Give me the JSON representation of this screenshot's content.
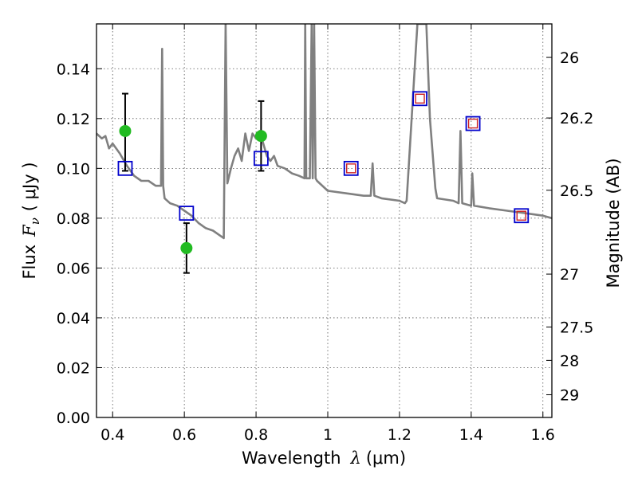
{
  "chart_data": {
    "type": "line",
    "xlabel_prefix": "Wavelength",
    "xlabel_symbol": "λ",
    "xlabel_unit": "(μm)",
    "ylabel_prefix": "Flux",
    "ylabel_symbol": "F",
    "ylabel_subscript": "ν",
    "ylabel_unit": "( μJy )",
    "y2label": "Magnitude (AB)",
    "xlim": [
      0.355,
      1.625
    ],
    "ylim": [
      0.0,
      0.158
    ],
    "grid": true,
    "x_ticks": [
      0.4,
      0.6,
      0.8,
      1.0,
      1.2,
      1.4,
      1.6
    ],
    "x_tick_labels": [
      "0.4",
      "0.6",
      "0.8",
      "1",
      "1.2",
      "1.4",
      "1.6"
    ],
    "y_ticks": [
      0.0,
      0.02,
      0.04,
      0.06,
      0.08,
      0.1,
      0.12,
      0.14
    ],
    "y_tick_labels": [
      "0.00",
      "0.02",
      "0.04",
      "0.06",
      "0.08",
      "0.10",
      "0.12",
      "0.14"
    ],
    "y2_ticks": [
      26,
      26.2,
      26.5,
      27,
      27.5,
      28,
      29
    ],
    "y2_tick_labels": [
      "26",
      "26.2",
      "26.5",
      "27",
      "27.5",
      "28",
      "29"
    ],
    "model_spectrum": {
      "color": "#808080",
      "x": [
        0.355,
        0.37,
        0.38,
        0.39,
        0.4,
        0.42,
        0.44,
        0.46,
        0.48,
        0.5,
        0.52,
        0.535,
        0.538,
        0.541,
        0.545,
        0.56,
        0.58,
        0.6,
        0.62,
        0.64,
        0.66,
        0.68,
        0.7,
        0.71,
        0.715,
        0.72,
        0.73,
        0.74,
        0.75,
        0.76,
        0.77,
        0.78,
        0.79,
        0.8,
        0.81,
        0.82,
        0.83,
        0.84,
        0.85,
        0.86,
        0.88,
        0.9,
        0.92,
        0.935,
        0.937,
        0.94,
        0.95,
        0.955,
        0.958,
        0.962,
        0.966,
        0.97,
        1.0,
        1.05,
        1.1,
        1.12,
        1.125,
        1.13,
        1.15,
        1.2,
        1.215,
        1.22,
        1.25,
        1.26,
        1.275,
        1.285,
        1.3,
        1.305,
        1.35,
        1.365,
        1.37,
        1.375,
        1.4,
        1.403,
        1.408,
        1.45,
        1.5,
        1.55,
        1.6,
        1.625
      ],
      "y": [
        0.114,
        0.112,
        0.113,
        0.108,
        0.11,
        0.106,
        0.101,
        0.097,
        0.095,
        0.095,
        0.093,
        0.093,
        0.148,
        0.093,
        0.088,
        0.086,
        0.085,
        0.083,
        0.081,
        0.078,
        0.076,
        0.075,
        0.073,
        0.072,
        0.158,
        0.094,
        0.1,
        0.105,
        0.108,
        0.103,
        0.114,
        0.107,
        0.114,
        0.112,
        0.115,
        0.11,
        0.105,
        0.103,
        0.105,
        0.101,
        0.1,
        0.098,
        0.097,
        0.096,
        0.158,
        0.096,
        0.096,
        0.158,
        0.096,
        0.158,
        0.096,
        0.095,
        0.091,
        0.09,
        0.089,
        0.089,
        0.102,
        0.089,
        0.088,
        0.087,
        0.086,
        0.087,
        0.158,
        0.158,
        0.158,
        0.12,
        0.092,
        0.088,
        0.087,
        0.086,
        0.115,
        0.086,
        0.085,
        0.098,
        0.085,
        0.084,
        0.083,
        0.082,
        0.081,
        0.08
      ]
    },
    "measured_points": {
      "color": "#22bb22",
      "points": [
        {
          "x": 0.435,
          "y": 0.115,
          "err_low": 0.099,
          "err_high": 0.13
        },
        {
          "x": 0.606,
          "y": 0.068,
          "err_low": 0.058,
          "err_high": 0.078
        },
        {
          "x": 0.814,
          "y": 0.113,
          "err_low": 0.099,
          "err_high": 0.127
        }
      ]
    },
    "synthetic_blue_squares": {
      "color": "#0000cc",
      "points": [
        {
          "x": 0.435,
          "y": 0.1
        },
        {
          "x": 0.606,
          "y": 0.082
        },
        {
          "x": 0.814,
          "y": 0.104
        },
        {
          "x": 1.065,
          "y": 0.1
        },
        {
          "x": 1.257,
          "y": 0.128
        },
        {
          "x": 1.405,
          "y": 0.118
        },
        {
          "x": 1.54,
          "y": 0.081
        }
      ]
    },
    "synthetic_red_squares": {
      "color": "#cc2222",
      "points": [
        {
          "x": 1.065,
          "y": 0.1
        },
        {
          "x": 1.257,
          "y": 0.128
        },
        {
          "x": 1.405,
          "y": 0.118
        },
        {
          "x": 1.54,
          "y": 0.081
        }
      ]
    }
  }
}
